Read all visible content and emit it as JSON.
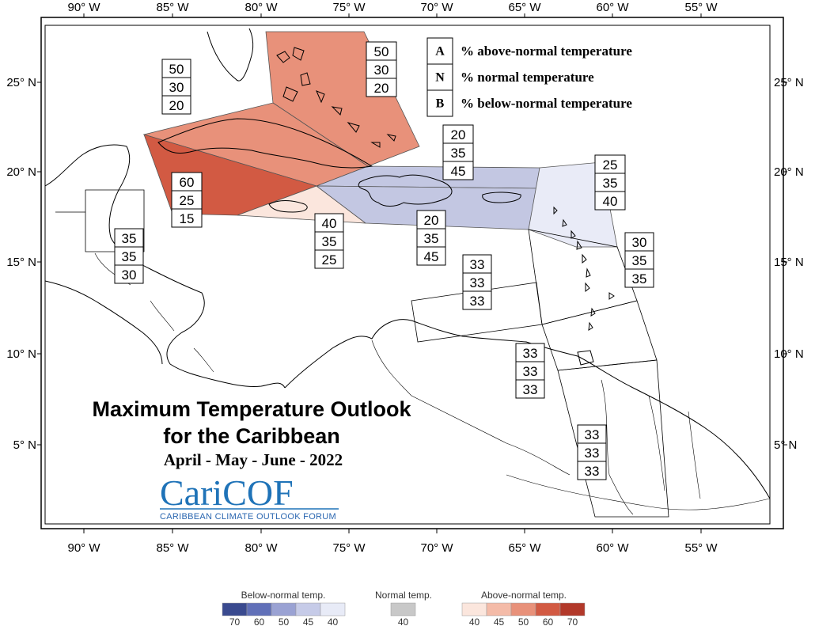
{
  "title": {
    "line1": "Maximum Temperature Outlook",
    "line2": "for the Caribbean",
    "period": "April - May - June - 2022"
  },
  "logo": {
    "wordmark": "CariCOF",
    "tagline": "CARIBBEAN CLIMATE OUTLOOK FORUM"
  },
  "axes": {
    "longitude_ticks": [
      "90° W",
      "85° W",
      "80° W",
      "75° W",
      "70° W",
      "65° W",
      "60° W",
      "55° W"
    ],
    "latitude_ticks": [
      "25° N",
      "20° N",
      "15° N",
      "10° N",
      "5° N"
    ]
  },
  "key": [
    {
      "letter": "A",
      "text": "% above-normal temperature"
    },
    {
      "letter": "N",
      "text": "% normal temperature"
    },
    {
      "letter": "B",
      "text": "% below-normal temperature"
    }
  ],
  "zones": [
    {
      "id": "bahamas",
      "above": "50",
      "normal": "30",
      "below": "20",
      "fill": "#e8917a"
    },
    {
      "id": "cuba",
      "above": "50",
      "normal": "30",
      "below": "20",
      "fill": "#e8917a"
    },
    {
      "id": "cayman",
      "above": "60",
      "normal": "25",
      "below": "15",
      "fill": "#d25a43"
    },
    {
      "id": "jamaica",
      "above": "40",
      "normal": "35",
      "below": "25",
      "fill": "#fbe6dd"
    },
    {
      "id": "hispaniola-north",
      "above": "20",
      "normal": "35",
      "below": "45",
      "fill": "#c3c7e2"
    },
    {
      "id": "hispaniola-south",
      "above": "20",
      "normal": "35",
      "below": "45",
      "fill": "#c3c7e2"
    },
    {
      "id": "leeward",
      "above": "25",
      "normal": "35",
      "below": "40",
      "fill": "#e9ebf7"
    },
    {
      "id": "belize",
      "above": "35",
      "normal": "35",
      "below": "30",
      "fill": "none"
    },
    {
      "id": "windward",
      "above": "30",
      "normal": "35",
      "below": "35",
      "fill": "none"
    },
    {
      "id": "abc-islands",
      "above": "33",
      "normal": "33",
      "below": "33",
      "fill": "none"
    },
    {
      "id": "trinidad",
      "above": "33",
      "normal": "33",
      "below": "33",
      "fill": "none"
    },
    {
      "id": "guianas",
      "above": "33",
      "normal": "33",
      "below": "33",
      "fill": "none"
    }
  ],
  "color_scale": {
    "below_label": "Below-normal temp.",
    "normal_label": "Normal temp.",
    "above_label": "Above-normal temp.",
    "below": [
      {
        "value": "70",
        "color": "#3a4a8f"
      },
      {
        "value": "60",
        "color": "#6170b8"
      },
      {
        "value": "50",
        "color": "#9aa2d3"
      },
      {
        "value": "45",
        "color": "#c6cbe8"
      },
      {
        "value": "40",
        "color": "#e8ebf7"
      }
    ],
    "normal": [
      {
        "value": "40",
        "color": "#c8c8c8"
      }
    ],
    "above": [
      {
        "value": "40",
        "color": "#fbe6dd"
      },
      {
        "value": "45",
        "color": "#f4bba8"
      },
      {
        "value": "50",
        "color": "#e8917a"
      },
      {
        "value": "60",
        "color": "#d25a43"
      },
      {
        "value": "70",
        "color": "#b2392a"
      }
    ]
  }
}
